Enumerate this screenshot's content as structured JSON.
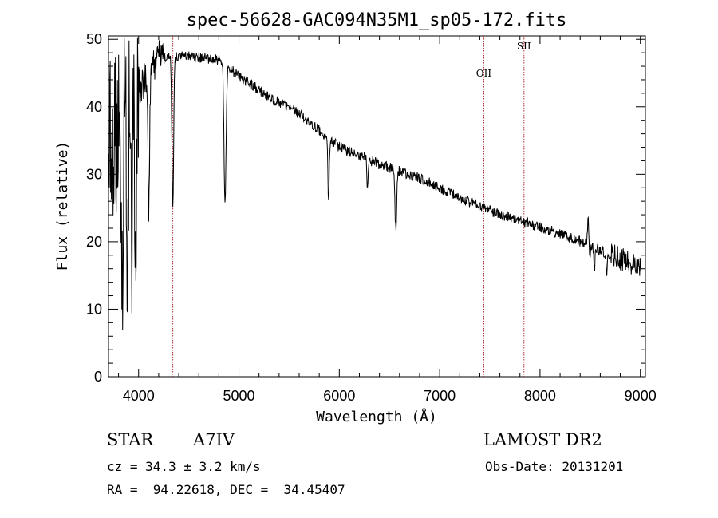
{
  "chart_data": {
    "type": "line",
    "title": "spec-56628-GAC094N35M1_sp05-172.fits",
    "xlabel": "Wavelength (Å)",
    "ylabel": "Flux (relative)",
    "xlim": [
      3700,
      9050
    ],
    "ylim": [
      0,
      50.5
    ],
    "xticks": [
      4000,
      5000,
      6000,
      7000,
      8000,
      9000
    ],
    "yticks": [
      0,
      10,
      20,
      30,
      40,
      50
    ],
    "grid": false,
    "line_color": "#000000",
    "marker_color": "#b03030",
    "line_markers": [
      {
        "x": 4341,
        "label": ""
      },
      {
        "x": 7440,
        "label": "OII"
      },
      {
        "x": 7840,
        "label": "SII"
      }
    ],
    "continuum": {
      "x": [
        3720,
        4000,
        4200,
        4500,
        4800,
        5000,
        5300,
        5600,
        6000,
        6400,
        6800,
        7200,
        7600,
        8000,
        8400,
        8800,
        9000
      ],
      "y": [
        36,
        43,
        47,
        47.5,
        47,
        44.5,
        41.5,
        39,
        34,
        31.5,
        29.5,
        26.5,
        24,
        22.2,
        20,
        17.5,
        16
      ]
    },
    "absorption_lines": [
      {
        "x": 3835,
        "depth": 26,
        "width": 12
      },
      {
        "x": 3889,
        "depth": 20,
        "width": 12
      },
      {
        "x": 3934,
        "depth": 22,
        "width": 10
      },
      {
        "x": 3970,
        "depth": 24,
        "width": 10
      },
      {
        "x": 4102,
        "depth": 21,
        "width": 11
      },
      {
        "x": 4341,
        "depth": 22,
        "width": 12
      },
      {
        "x": 4861,
        "depth": 20.5,
        "width": 14
      },
      {
        "x": 5893,
        "depth": 9.5,
        "width": 9
      },
      {
        "x": 6280,
        "depth": 4,
        "width": 8
      },
      {
        "x": 6563,
        "depth": 9,
        "width": 12
      },
      {
        "x": 8498,
        "depth": 2.5,
        "width": 8
      },
      {
        "x": 8542,
        "depth": 3.5,
        "width": 8
      },
      {
        "x": 8662,
        "depth": 3,
        "width": 8
      }
    ],
    "emission_features": [
      {
        "x": 8480,
        "height": 3.5,
        "width": 10
      }
    ]
  },
  "info": {
    "object_class": "STAR",
    "subclass": "A7IV",
    "survey": "LAMOST DR2",
    "redshift": "cz = 34.3 ± 3.2 km/s",
    "obs_date": "Obs-Date: 20131201",
    "coords": "RA =  94.22618, DEC =  34.45407"
  }
}
